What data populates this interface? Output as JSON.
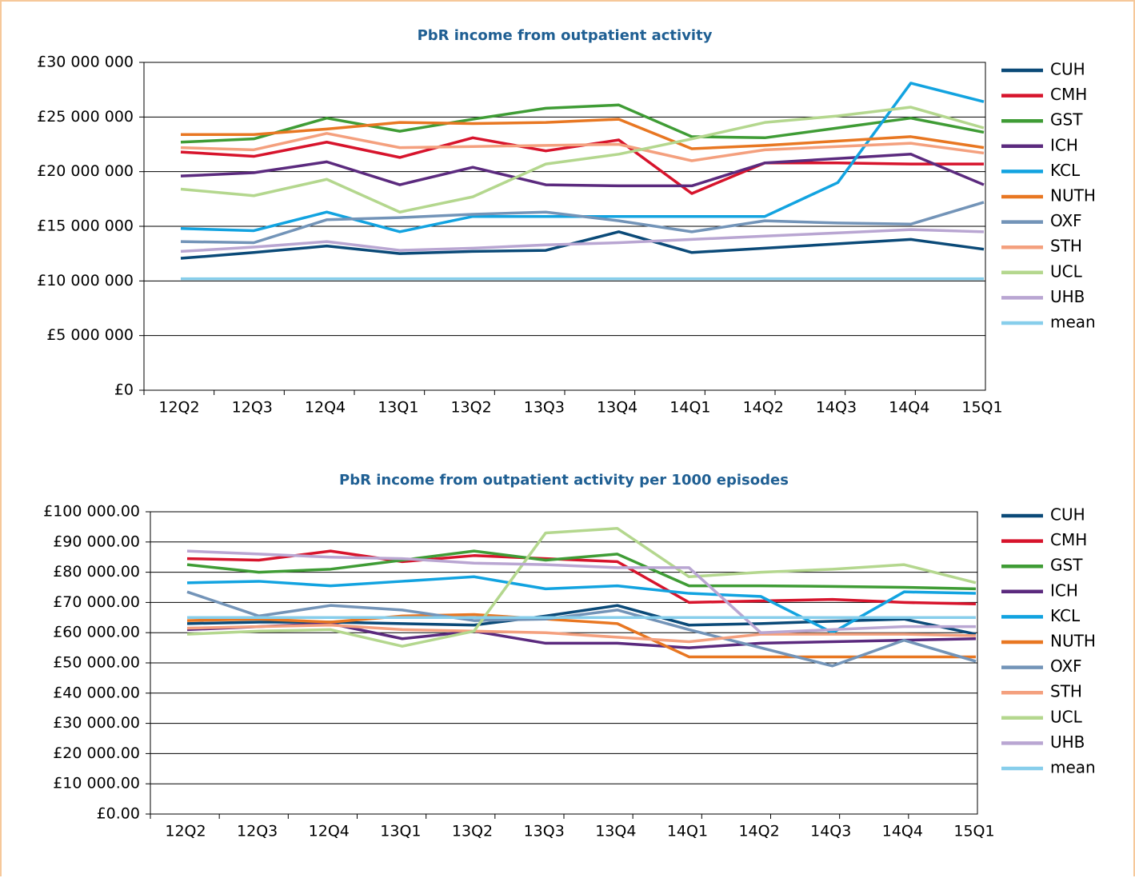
{
  "chart_data": [
    {
      "type": "line",
      "title": "PbR income from outpatient activity",
      "categories": [
        "12Q2",
        "12Q3",
        "12Q4",
        "13Q1",
        "13Q2",
        "13Q3",
        "13Q4",
        "14Q1",
        "14Q2",
        "14Q3",
        "14Q4",
        "15Q1"
      ],
      "ylim": [
        0,
        30000000
      ],
      "yticks": [
        {
          "value": 0,
          "label": "£0"
        },
        {
          "value": 5000000,
          "label": "£5 000 000"
        },
        {
          "value": 10000000,
          "label": "£10 000 000"
        },
        {
          "value": 15000000,
          "label": "£15 000 000"
        },
        {
          "value": 20000000,
          "label": "£20 000 000"
        },
        {
          "value": 25000000,
          "label": "£25 000 000"
        },
        {
          "value": 30000000,
          "label": "£30 000 000"
        }
      ],
      "grid": true,
      "legend": "right",
      "series": [
        {
          "name": "CUH",
          "color": "#0b4a78",
          "values": [
            12070000,
            12600000,
            13200000,
            12500000,
            12700000,
            12800000,
            14500000,
            12600000,
            13000000,
            13400000,
            13800000,
            12900000
          ]
        },
        {
          "name": "CMH",
          "color": "#d7142c",
          "values": [
            21800000,
            21400000,
            22700000,
            21300000,
            23100000,
            21900000,
            22900000,
            18000000,
            20800000,
            20800000,
            20700000,
            20700000
          ]
        },
        {
          "name": "GST",
          "color": "#3f9c35",
          "values": [
            22700000,
            23000000,
            24900000,
            23700000,
            24800000,
            25800000,
            26100000,
            23200000,
            23100000,
            24000000,
            24900000,
            23600000
          ]
        },
        {
          "name": "ICH",
          "color": "#5b2a7e",
          "values": [
            19600000,
            19900000,
            20900000,
            18800000,
            20400000,
            18800000,
            18700000,
            18700000,
            20800000,
            21200000,
            21600000,
            18800000
          ]
        },
        {
          "name": "KCL",
          "color": "#12a3e0",
          "values": [
            14800000,
            14600000,
            16300000,
            14500000,
            15900000,
            15900000,
            15900000,
            15900000,
            15900000,
            19000000,
            28100000,
            26400000
          ]
        },
        {
          "name": "NUTH",
          "color": "#e87722",
          "values": [
            23400000,
            23400000,
            23900000,
            24500000,
            24400000,
            24500000,
            24800000,
            22100000,
            22400000,
            22800000,
            23200000,
            22200000
          ]
        },
        {
          "name": "OXF",
          "color": "#7394b8",
          "values": [
            13600000,
            13500000,
            15600000,
            15800000,
            16100000,
            16300000,
            15500000,
            14500000,
            15500000,
            15300000,
            15200000,
            17200000
          ]
        },
        {
          "name": "STH",
          "color": "#f4a07e",
          "values": [
            22200000,
            22000000,
            23500000,
            22200000,
            22300000,
            22400000,
            22500000,
            21000000,
            22000000,
            22300000,
            22600000,
            21700000
          ]
        },
        {
          "name": "UCL",
          "color": "#b4d78e",
          "values": [
            18400000,
            17800000,
            19300000,
            16300000,
            17700000,
            20700000,
            21600000,
            23000000,
            24500000,
            25100000,
            25900000,
            24000000
          ]
        },
        {
          "name": "UHB",
          "color": "#b9a6d2",
          "values": [
            12700000,
            13100000,
            13600000,
            12800000,
            13000000,
            13300000,
            13500000,
            13800000,
            14100000,
            14400000,
            14700000,
            14500000
          ]
        },
        {
          "name": "mean",
          "color": "#87ceeb",
          "values": [
            10200000,
            10200000,
            10200000,
            10200000,
            10200000,
            10200000,
            10200000,
            10200000,
            10200000,
            10200000,
            10200000,
            10200000
          ]
        }
      ]
    },
    {
      "type": "line",
      "title": "PbR income from outpatient activity per 1000 episodes",
      "categories": [
        "12Q2",
        "12Q3",
        "12Q4",
        "13Q1",
        "13Q2",
        "13Q3",
        "13Q4",
        "14Q1",
        "14Q2",
        "14Q3",
        "14Q4",
        "15Q1"
      ],
      "ylim": [
        0,
        100000
      ],
      "yticks": [
        {
          "value": 0,
          "label": "£0.00"
        },
        {
          "value": 10000,
          "label": "£10 000.00"
        },
        {
          "value": 20000,
          "label": "£20 000.00"
        },
        {
          "value": 30000,
          "label": "£30 000.00"
        },
        {
          "value": 40000,
          "label": "£40 000.00"
        },
        {
          "value": 50000,
          "label": "£50 000.00"
        },
        {
          "value": 60000,
          "label": "£60 000.00"
        },
        {
          "value": 70000,
          "label": "£70 000.00"
        },
        {
          "value": 80000,
          "label": "£80 000.00"
        },
        {
          "value": 90000,
          "label": "£90 000.00"
        },
        {
          "value": 100000,
          "label": "£100 000.00"
        }
      ],
      "grid": true,
      "legend": "right",
      "series": [
        {
          "name": "CUH",
          "color": "#0b4a78",
          "values": [
            63000,
            63500,
            63500,
            63000,
            62500,
            65500,
            69000,
            62500,
            63000,
            63800,
            64500,
            59500
          ]
        },
        {
          "name": "CMH",
          "color": "#d7142c",
          "values": [
            84500,
            84000,
            87000,
            83500,
            85500,
            84500,
            83500,
            70000,
            70500,
            71000,
            70000,
            69500
          ]
        },
        {
          "name": "GST",
          "color": "#3f9c35",
          "values": [
            82500,
            80000,
            81000,
            84000,
            87000,
            84000,
            86000,
            75500,
            75500,
            75300,
            75000,
            74500
          ]
        },
        {
          "name": "ICH",
          "color": "#5b2a7e",
          "values": [
            61000,
            62000,
            63000,
            58000,
            60500,
            56500,
            56500,
            55000,
            56500,
            57000,
            57500,
            58000
          ]
        },
        {
          "name": "KCL",
          "color": "#12a3e0",
          "values": [
            76500,
            77000,
            75500,
            77000,
            78500,
            74500,
            75500,
            73000,
            72000,
            60000,
            73500,
            73000
          ]
        },
        {
          "name": "NUTH",
          "color": "#e87722",
          "values": [
            64000,
            64500,
            63500,
            65500,
            66000,
            64500,
            63000,
            52000,
            52000,
            52000,
            52000,
            52000
          ]
        },
        {
          "name": "OXF",
          "color": "#7394b8",
          "values": [
            73500,
            65500,
            69000,
            67500,
            64000,
            64500,
            67500,
            61000,
            55000,
            49000,
            57500,
            50500
          ]
        },
        {
          "name": "STH",
          "color": "#f4a07e",
          "values": [
            61500,
            62000,
            62500,
            61000,
            60500,
            60000,
            58500,
            57000,
            59500,
            59500,
            59500,
            59000
          ]
        },
        {
          "name": "UCL",
          "color": "#b4d78e",
          "values": [
            59500,
            60500,
            61000,
            55500,
            60500,
            93000,
            94500,
            78500,
            80000,
            81000,
            82500,
            76500
          ]
        },
        {
          "name": "UHB",
          "color": "#b9a6d2",
          "values": [
            87000,
            86000,
            85000,
            84500,
            83000,
            82500,
            81500,
            81500,
            60000,
            61000,
            62000,
            62000
          ]
        },
        {
          "name": "mean",
          "color": "#87ceeb",
          "values": [
            65000,
            65000,
            65000,
            65000,
            65000,
            65000,
            65000,
            65000,
            65000,
            65000,
            65000,
            65000
          ]
        }
      ]
    }
  ]
}
